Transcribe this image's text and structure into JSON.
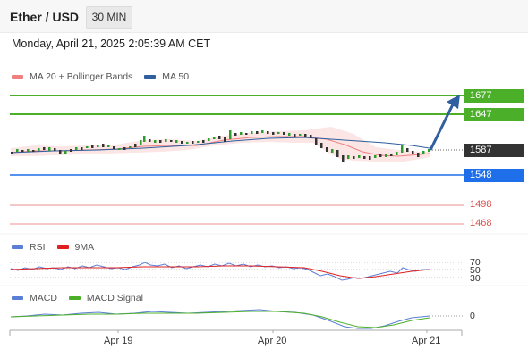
{
  "header": {
    "title": "Ether / USD",
    "timeframe": "30 MIN"
  },
  "datetime": "Monday, April 21, 2025 2:05:39 AM CET",
  "legend_main": [
    {
      "label": "MA 20 + Bollinger Bands",
      "color": "#f08080"
    },
    {
      "label": "MA 50",
      "color": "#2f5f9e"
    }
  ],
  "legend_rsi": [
    {
      "label": "RSI",
      "color": "#5b7fd6"
    },
    {
      "label": "9MA",
      "color": "#e02020"
    }
  ],
  "legend_macd": [
    {
      "label": "MACD",
      "color": "#5b7fd6"
    },
    {
      "label": "MACD Signal",
      "color": "#4caf2a"
    }
  ],
  "price_levels": {
    "resistance_2": "1677",
    "resistance_1": "1647",
    "current": "1587",
    "support_1": "1548",
    "support_2": "1498",
    "support_3": "1468"
  },
  "rsi_levels": {
    "upper": "70",
    "mid": "50",
    "lower": "30"
  },
  "macd_zero": "0",
  "x_labels": [
    "Apr 19",
    "Apr 20",
    "Apr 21"
  ],
  "colors": {
    "resistance": "#4caf2a",
    "support": "#1f6feb",
    "current": "#333333",
    "weak_level": "#d9534f",
    "arrow": "#2f5f9e"
  }
}
